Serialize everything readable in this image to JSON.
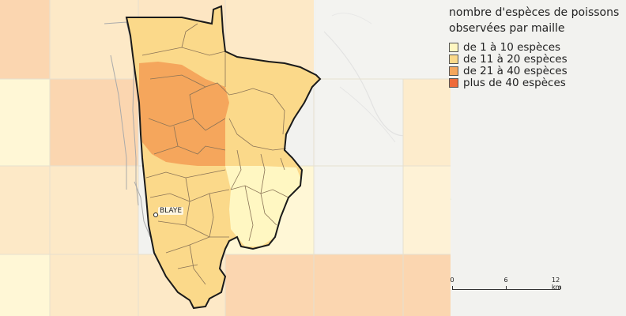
{
  "legend": {
    "title_line1": "nombre d'espèces de poissons",
    "title_line2": "observées par maille",
    "items": [
      {
        "label": "de 1 à 10 espèces",
        "color": "#fff7c2"
      },
      {
        "label": "de 11 à 20 espèces",
        "color": "#fbd98a"
      },
      {
        "label": "de 21 à 40 espèces",
        "color": "#f5a65c"
      },
      {
        "label": "plus de 40 espèces",
        "color": "#ee6a3a"
      }
    ]
  },
  "scalebar": {
    "labels": [
      "0",
      "6",
      "12 km"
    ]
  },
  "places": {
    "town": "BLAYE"
  },
  "colors": {
    "background": "#f2f2ef",
    "grid_outline": "#e6e0cf",
    "commune_border": "#8a7356",
    "territory_outline": "#1a1a1a"
  }
}
